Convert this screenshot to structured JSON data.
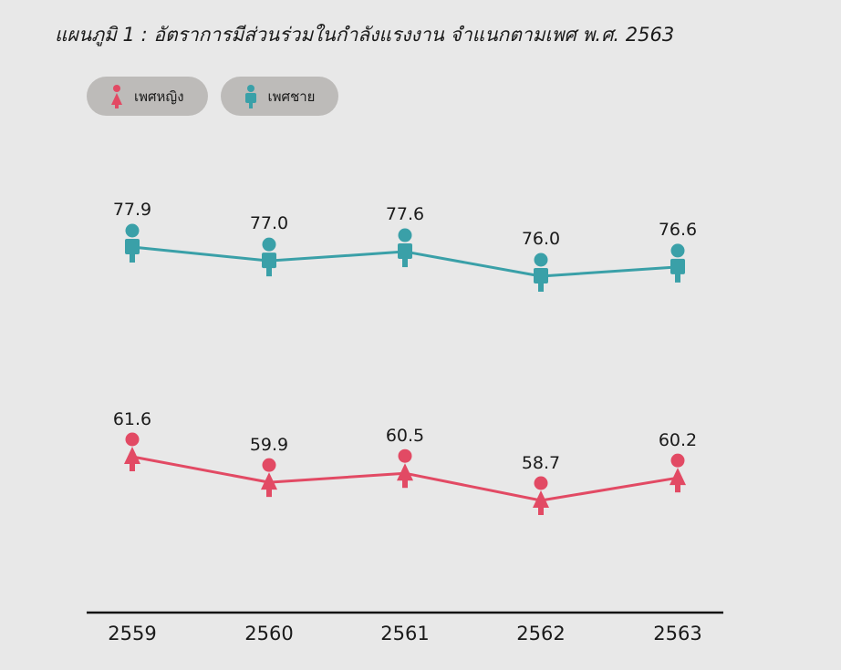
{
  "page": {
    "title": "แผนภูมิ 1 : อัตราการมีส่วนร่วมในกำลังแรงงาน จำแนกตามเพศ พ.ศ. 2563"
  },
  "legend": [
    {
      "label": "เพศหญิง",
      "icon": "female-person-icon",
      "color": "#e24a64"
    },
    {
      "label": "เพศชาย",
      "icon": "male-person-icon",
      "color": "#3aa0a8"
    }
  ],
  "chart_data": {
    "type": "line",
    "categories": [
      "2559",
      "2560",
      "2561",
      "2562",
      "2563"
    ],
    "series": [
      {
        "name": "เพศชาย",
        "color": "#3aa0a8",
        "marker": "male-person-icon",
        "values": [
          77.9,
          77.0,
          77.6,
          76.0,
          76.6
        ]
      },
      {
        "name": "เพศหญิง",
        "color": "#e24a64",
        "marker": "female-person-icon",
        "values": [
          61.6,
          59.9,
          60.5,
          58.7,
          60.2
        ]
      }
    ],
    "value_labels": [
      [
        "77.9",
        "77.0",
        "77.6",
        "76.0",
        "76.6"
      ],
      [
        "61.6",
        "59.9",
        "60.5",
        "58.7",
        "60.2"
      ]
    ],
    "legend_position": "top-left",
    "grid": false
  }
}
